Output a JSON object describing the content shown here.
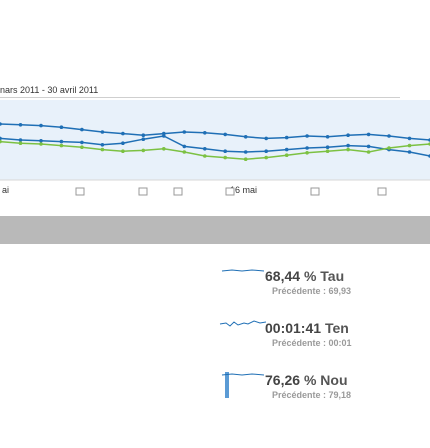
{
  "date_range": "nars 2011 - 30 avril 2011",
  "chart_data": {
    "type": "line",
    "x_label_visible": "16 mai",
    "axis_labels": [
      "ai",
      "",
      "",
      "",
      "16 mai",
      "",
      ""
    ],
    "series": [
      {
        "color": "#1f6fb5",
        "values": [
          52,
          50,
          49,
          48,
          47,
          44,
          46,
          51,
          55,
          42,
          39,
          36,
          35,
          36,
          38,
          40,
          41,
          43,
          42,
          38,
          35,
          30
        ]
      },
      {
        "color": "#7cc142",
        "values": [
          48,
          46,
          45,
          43,
          41,
          38,
          36,
          37,
          39,
          35,
          30,
          28,
          26,
          28,
          31,
          34,
          36,
          38,
          35,
          40,
          43,
          45
        ]
      },
      {
        "color": "#1f6fb5",
        "values": [
          70,
          69,
          68,
          66,
          63,
          60,
          58,
          56,
          58,
          60,
          59,
          57,
          54,
          52,
          53,
          55,
          54,
          56,
          57,
          55,
          52,
          50
        ]
      }
    ]
  },
  "metrics": [
    {
      "value": "68,44",
      "label": "% Tau",
      "previous": "Précédente : 69,93"
    },
    {
      "value": "00:01:41",
      "label": "Ten",
      "previous": "Précédente : 00:01"
    },
    {
      "value": "76,26",
      "label": "% Nou",
      "previous": "Précédente : 79,18"
    }
  ],
  "colors": {
    "line_blue": "#1f6fb5",
    "line_green": "#7cc142",
    "area_fill": "#e8f1fa"
  }
}
